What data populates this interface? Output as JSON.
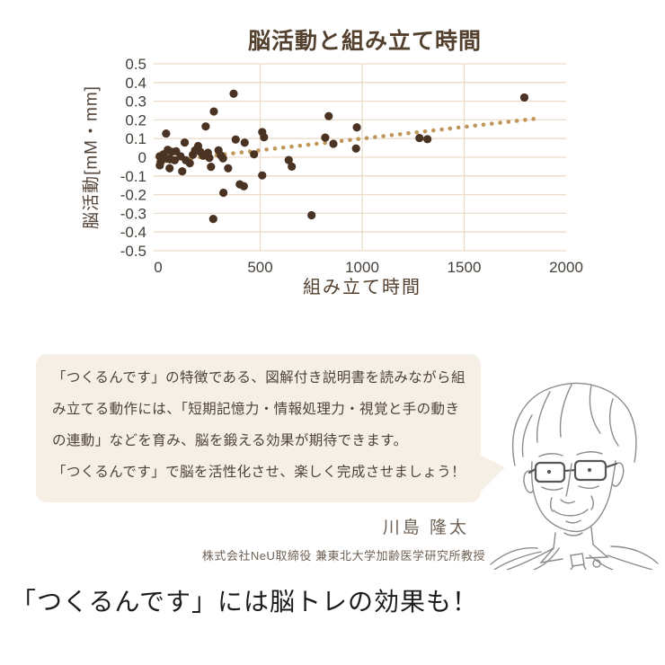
{
  "page": {
    "headline": "「つくるんです」には脳トレの効果も！"
  },
  "chart_data": {
    "type": "scatter",
    "title": "脳活動と組み立て時間",
    "xlabel": "組み立て時間",
    "ylabel": "脳活動[mM・mm]",
    "xlim": [
      0,
      2000
    ],
    "ylim": [
      -0.5,
      0.5
    ],
    "grid": "on",
    "legend": "none",
    "xticks": [
      {
        "v": 0,
        "label": "0"
      },
      {
        "v": 500,
        "label": "500"
      },
      {
        "v": 1000,
        "label": "1000"
      },
      {
        "v": 1500,
        "label": "1500"
      },
      {
        "v": 2000,
        "label": "2000"
      }
    ],
    "xgrid": [
      500,
      1000,
      1500
    ],
    "yticks": [
      {
        "v": 0.5,
        "label": "0.5"
      },
      {
        "v": 0.4,
        "label": "0.4"
      },
      {
        "v": 0.3,
        "label": "0.3"
      },
      {
        "v": 0.2,
        "label": "0.2"
      },
      {
        "v": 0.1,
        "label": "0.1"
      },
      {
        "v": 0,
        "label": "0"
      },
      {
        "v": -0.1,
        "label": "-0.1"
      },
      {
        "v": -0.2,
        "label": "-0.2"
      },
      {
        "v": -0.3,
        "label": "-0.3"
      },
      {
        "v": -0.4,
        "label": "-0.4"
      },
      {
        "v": -0.5,
        "label": "-0.5"
      }
    ],
    "points": [
      [
        370,
        0.34
      ],
      [
        1795,
        0.32
      ],
      [
        273,
        0.245
      ],
      [
        836,
        0.22
      ],
      [
        233,
        0.165
      ],
      [
        974,
        0.16
      ],
      [
        39,
        0.127
      ],
      [
        130,
        0.079
      ],
      [
        196,
        0.06
      ],
      [
        380,
        0.095
      ],
      [
        424,
        0.078
      ],
      [
        510,
        0.135
      ],
      [
        519,
        0.107
      ],
      [
        819,
        0.105
      ],
      [
        859,
        0.072
      ],
      [
        970,
        0.047
      ],
      [
        1281,
        0.103
      ],
      [
        1320,
        0.097
      ],
      [
        7,
        0.005
      ],
      [
        14,
        -0.022
      ],
      [
        26,
        0.016
      ],
      [
        41,
        -0.006
      ],
      [
        47,
        0.04
      ],
      [
        58,
        -0.011
      ],
      [
        66,
        0.029
      ],
      [
        81,
        -0.016
      ],
      [
        88,
        0.032
      ],
      [
        8,
        -0.043
      ],
      [
        56,
        -0.059
      ],
      [
        110,
        0.005
      ],
      [
        118,
        -0.075
      ],
      [
        136,
        -0.016
      ],
      [
        155,
        -0.032
      ],
      [
        170,
        0.013
      ],
      [
        181,
        0.037
      ],
      [
        207,
        0.029
      ],
      [
        221,
        0.008
      ],
      [
        244,
        0.024
      ],
      [
        251,
        -0.003
      ],
      [
        259,
        -0.051
      ],
      [
        296,
        0.037
      ],
      [
        307,
        0.01
      ],
      [
        318,
        -0.006
      ],
      [
        343,
        -0.059
      ],
      [
        470,
        0.016
      ],
      [
        510,
        -0.097
      ],
      [
        640,
        -0.015
      ],
      [
        655,
        -0.05
      ],
      [
        400,
        -0.145
      ],
      [
        420,
        -0.155
      ],
      [
        320,
        -0.19
      ],
      [
        270,
        -0.33
      ],
      [
        752,
        -0.31
      ]
    ],
    "trend": {
      "style": "dotted",
      "x": [
        0,
        1840
      ],
      "y": [
        -0.025,
        0.205
      ]
    },
    "colors": {
      "points": "#4a3323",
      "trend": "#c0965a",
      "grid": "#ecdcc9",
      "title": "#54402e",
      "axis_label": "#54402e",
      "tick": "#46403a"
    }
  },
  "speech": {
    "lines": [
      "「つくるんです」の特徴である、図解付き説明書を読みながら組",
      "み立てる動作には、「短期記憶力・情報処理力・視覚と手の動き",
      "の連動」などを育み、脳を鍛える効果が期待できます。",
      "「つくるんです」で脳を活性化させ、楽しく完成させましょう！"
    ],
    "bg_color": "#f5efe6"
  },
  "attribution": {
    "name": "川島 隆太",
    "title": "株式会社NeU取締役 兼東北大学加齢医学研究所教授"
  }
}
